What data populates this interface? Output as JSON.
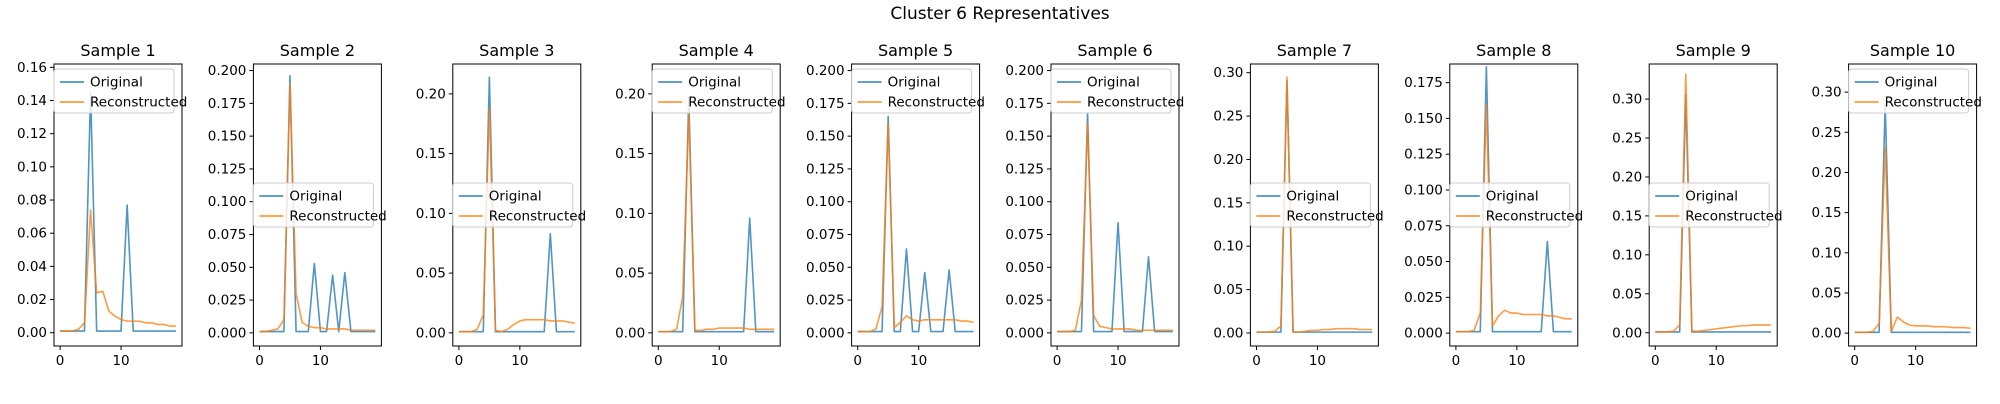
{
  "figure": {
    "suptitle": "Cluster 6 Representatives"
  },
  "colors": {
    "original": "#1f77b4",
    "reconstructed": "#ff7f0e"
  },
  "chart_data": [
    {
      "type": "line",
      "title": "Sample 1",
      "xlim": [
        -1,
        20
      ],
      "ylim": [
        -0.008,
        0.162
      ],
      "xticks": [
        0,
        10
      ],
      "yticks": [
        0,
        0.02,
        0.04,
        0.06,
        0.08,
        0.1,
        0.12,
        0.14,
        0.16
      ],
      "ytick_labels": [
        "0.00",
        "0.02",
        "0.04",
        "0.06",
        "0.08",
        "0.10",
        "0.12",
        "0.14",
        "0.16"
      ],
      "legend": "upper",
      "x": [
        0,
        1,
        2,
        3,
        4,
        5,
        6,
        7,
        8,
        9,
        10,
        11,
        12,
        13,
        14,
        15,
        16,
        17,
        18,
        19
      ],
      "series": [
        {
          "name": "Original",
          "values": [
            0.001,
            0.001,
            0.001,
            0.001,
            0.001,
            0.145,
            0.001,
            0.001,
            0.001,
            0.001,
            0.001,
            0.077,
            0.001,
            0.001,
            0.001,
            0.001,
            0.001,
            0.001,
            0.001,
            0.001
          ]
        },
        {
          "name": "Reconstructed",
          "values": [
            0.001,
            0.001,
            0.001,
            0.002,
            0.006,
            0.074,
            0.024,
            0.025,
            0.013,
            0.01,
            0.008,
            0.007,
            0.007,
            0.007,
            0.006,
            0.006,
            0.005,
            0.005,
            0.004,
            0.004
          ]
        }
      ]
    },
    {
      "type": "line",
      "title": "Sample 2",
      "xlim": [
        -1,
        20
      ],
      "ylim": [
        -0.01,
        0.205
      ],
      "xticks": [
        0,
        10
      ],
      "yticks": [
        0,
        0.025,
        0.05,
        0.075,
        0.1,
        0.125,
        0.15,
        0.175,
        0.2
      ],
      "ytick_labels": [
        "0.000",
        "0.025",
        "0.050",
        "0.075",
        "0.100",
        "0.125",
        "0.150",
        "0.175",
        "0.200"
      ],
      "legend": "center",
      "x": [
        0,
        1,
        2,
        3,
        4,
        5,
        6,
        7,
        8,
        9,
        10,
        11,
        12,
        13,
        14,
        15,
        16,
        17,
        18,
        19
      ],
      "series": [
        {
          "name": "Original",
          "values": [
            0.001,
            0.001,
            0.001,
            0.001,
            0.001,
            0.196,
            0.001,
            0.001,
            0.001,
            0.053,
            0.001,
            0.001,
            0.044,
            0.001,
            0.046,
            0.001,
            0.001,
            0.001,
            0.001,
            0.001
          ]
        },
        {
          "name": "Reconstructed",
          "values": [
            0.001,
            0.001,
            0.002,
            0.003,
            0.01,
            0.19,
            0.03,
            0.008,
            0.005,
            0.004,
            0.004,
            0.003,
            0.003,
            0.003,
            0.003,
            0.002,
            0.002,
            0.002,
            0.002,
            0.002
          ]
        }
      ]
    },
    {
      "type": "line",
      "title": "Sample 3",
      "xlim": [
        -1,
        20
      ],
      "ylim": [
        -0.011,
        0.225
      ],
      "xticks": [
        0,
        10
      ],
      "yticks": [
        0,
        0.05,
        0.1,
        0.15,
        0.2
      ],
      "ytick_labels": [
        "0.00",
        "0.05",
        "0.10",
        "0.15",
        "0.20"
      ],
      "legend": "center",
      "x": [
        0,
        1,
        2,
        3,
        4,
        5,
        6,
        7,
        8,
        9,
        10,
        11,
        12,
        13,
        14,
        15,
        16,
        17,
        18,
        19
      ],
      "series": [
        {
          "name": "Original",
          "values": [
            0.001,
            0.001,
            0.001,
            0.001,
            0.001,
            0.214,
            0.001,
            0.001,
            0.001,
            0.001,
            0.001,
            0.001,
            0.001,
            0.001,
            0.001,
            0.083,
            0.001,
            0.001,
            0.001,
            0.001
          ]
        },
        {
          "name": "Reconstructed",
          "values": [
            0.001,
            0.001,
            0.001,
            0.003,
            0.015,
            0.188,
            0.002,
            0.001,
            0.003,
            0.007,
            0.01,
            0.011,
            0.011,
            0.011,
            0.011,
            0.01,
            0.01,
            0.01,
            0.009,
            0.008
          ]
        }
      ]
    },
    {
      "type": "line",
      "title": "Sample 4",
      "xlim": [
        -1,
        20
      ],
      "ylim": [
        -0.011,
        0.225
      ],
      "xticks": [
        0,
        10
      ],
      "yticks": [
        0,
        0.05,
        0.1,
        0.15,
        0.2
      ],
      "ytick_labels": [
        "0.00",
        "0.05",
        "0.10",
        "0.15",
        "0.20"
      ],
      "legend": "upper",
      "x": [
        0,
        1,
        2,
        3,
        4,
        5,
        6,
        7,
        8,
        9,
        10,
        11,
        12,
        13,
        14,
        15,
        16,
        17,
        18,
        19
      ],
      "series": [
        {
          "name": "Original",
          "values": [
            0.001,
            0.001,
            0.001,
            0.001,
            0.001,
            0.197,
            0.001,
            0.001,
            0.001,
            0.001,
            0.001,
            0.001,
            0.001,
            0.001,
            0.001,
            0.096,
            0.001,
            0.001,
            0.001,
            0.001
          ]
        },
        {
          "name": "Reconstructed",
          "values": [
            0.001,
            0.001,
            0.001,
            0.003,
            0.03,
            0.184,
            0.002,
            0.002,
            0.003,
            0.003,
            0.004,
            0.004,
            0.004,
            0.004,
            0.004,
            0.003,
            0.003,
            0.003,
            0.003,
            0.003
          ]
        }
      ]
    },
    {
      "type": "line",
      "title": "Sample 5",
      "xlim": [
        -1,
        20
      ],
      "ylim": [
        -0.01,
        0.205
      ],
      "xticks": [
        0,
        10
      ],
      "yticks": [
        0,
        0.025,
        0.05,
        0.075,
        0.1,
        0.125,
        0.15,
        0.175,
        0.2
      ],
      "ytick_labels": [
        "0.000",
        "0.025",
        "0.050",
        "0.075",
        "0.100",
        "0.125",
        "0.150",
        "0.175",
        "0.200"
      ],
      "legend": "upper",
      "x": [
        0,
        1,
        2,
        3,
        4,
        5,
        6,
        7,
        8,
        9,
        10,
        11,
        12,
        13,
        14,
        15,
        16,
        17,
        18,
        19
      ],
      "series": [
        {
          "name": "Original",
          "values": [
            0.001,
            0.001,
            0.001,
            0.001,
            0.001,
            0.165,
            0.001,
            0.001,
            0.064,
            0.001,
            0.001,
            0.046,
            0.001,
            0.001,
            0.001,
            0.048,
            0.001,
            0.001,
            0.001,
            0.001
          ]
        },
        {
          "name": "Reconstructed",
          "values": [
            0.001,
            0.001,
            0.001,
            0.003,
            0.02,
            0.16,
            0.004,
            0.008,
            0.013,
            0.01,
            0.009,
            0.01,
            0.01,
            0.01,
            0.01,
            0.01,
            0.01,
            0.009,
            0.009,
            0.008
          ]
        }
      ]
    },
    {
      "type": "line",
      "title": "Sample 6",
      "xlim": [
        -1,
        20
      ],
      "ylim": [
        -0.01,
        0.205
      ],
      "xticks": [
        0,
        10
      ],
      "yticks": [
        0,
        0.025,
        0.05,
        0.075,
        0.1,
        0.125,
        0.15,
        0.175,
        0.2
      ],
      "ytick_labels": [
        "0.000",
        "0.025",
        "0.050",
        "0.075",
        "0.100",
        "0.125",
        "0.150",
        "0.175",
        "0.200"
      ],
      "legend": "upper",
      "x": [
        0,
        1,
        2,
        3,
        4,
        5,
        6,
        7,
        8,
        9,
        10,
        11,
        12,
        13,
        14,
        15,
        16,
        17,
        18,
        19
      ],
      "series": [
        {
          "name": "Original",
          "values": [
            0.001,
            0.001,
            0.001,
            0.001,
            0.001,
            0.168,
            0.001,
            0.001,
            0.001,
            0.001,
            0.084,
            0.001,
            0.001,
            0.001,
            0.001,
            0.058,
            0.001,
            0.001,
            0.001,
            0.001
          ]
        },
        {
          "name": "Reconstructed",
          "values": [
            0.001,
            0.001,
            0.001,
            0.002,
            0.025,
            0.16,
            0.013,
            0.005,
            0.004,
            0.003,
            0.003,
            0.003,
            0.003,
            0.002,
            0.002,
            0.002,
            0.002,
            0.002,
            0.002,
            0.002
          ]
        }
      ]
    },
    {
      "type": "line",
      "title": "Sample 7",
      "xlim": [
        -1,
        20
      ],
      "ylim": [
        -0.015,
        0.31
      ],
      "xticks": [
        0,
        10
      ],
      "yticks": [
        0,
        0.05,
        0.1,
        0.15,
        0.2,
        0.25,
        0.3
      ],
      "ytick_labels": [
        "0.00",
        "0.05",
        "0.10",
        "0.15",
        "0.20",
        "0.25",
        "0.30"
      ],
      "legend": "center",
      "x": [
        0,
        1,
        2,
        3,
        4,
        5,
        6,
        7,
        8,
        9,
        10,
        11,
        12,
        13,
        14,
        15,
        16,
        17,
        18,
        19
      ],
      "series": [
        {
          "name": "Original",
          "values": [
            0.001,
            0.001,
            0.001,
            0.001,
            0.001,
            0.291,
            0.001,
            0.001,
            0.001,
            0.001,
            0.001,
            0.001,
            0.001,
            0.001,
            0.001,
            0.001,
            0.001,
            0.001,
            0.001,
            0.001
          ]
        },
        {
          "name": "Reconstructed",
          "values": [
            0.001,
            0.001,
            0.001,
            0.002,
            0.008,
            0.295,
            0.001,
            0.001,
            0.002,
            0.003,
            0.003,
            0.004,
            0.004,
            0.005,
            0.005,
            0.005,
            0.005,
            0.004,
            0.004,
            0.004
          ]
        }
      ]
    },
    {
      "type": "line",
      "title": "Sample 8",
      "xlim": [
        -1,
        20
      ],
      "ylim": [
        -0.009,
        0.188
      ],
      "xticks": [
        0,
        10
      ],
      "yticks": [
        0,
        0.025,
        0.05,
        0.075,
        0.1,
        0.125,
        0.15,
        0.175
      ],
      "ytick_labels": [
        "0.000",
        "0.025",
        "0.050",
        "0.075",
        "0.100",
        "0.125",
        "0.150",
        "0.175"
      ],
      "legend": "center",
      "x": [
        0,
        1,
        2,
        3,
        4,
        5,
        6,
        7,
        8,
        9,
        10,
        11,
        12,
        13,
        14,
        15,
        16,
        17,
        18,
        19
      ],
      "series": [
        {
          "name": "Original",
          "values": [
            0.001,
            0.001,
            0.001,
            0.001,
            0.001,
            0.186,
            0.001,
            0.001,
            0.001,
            0.001,
            0.001,
            0.001,
            0.001,
            0.001,
            0.001,
            0.064,
            0.001,
            0.001,
            0.001,
            0.001
          ]
        },
        {
          "name": "Reconstructed",
          "values": [
            0.001,
            0.001,
            0.001,
            0.002,
            0.014,
            0.16,
            0.005,
            0.012,
            0.016,
            0.014,
            0.014,
            0.013,
            0.013,
            0.013,
            0.013,
            0.012,
            0.012,
            0.011,
            0.01,
            0.01
          ]
        }
      ]
    },
    {
      "type": "line",
      "title": "Sample 9",
      "xlim": [
        -1,
        20
      ],
      "ylim": [
        -0.017,
        0.345
      ],
      "xticks": [
        0,
        10
      ],
      "yticks": [
        0,
        0.05,
        0.1,
        0.15,
        0.2,
        0.25,
        0.3
      ],
      "ytick_labels": [
        "0.00",
        "0.05",
        "0.10",
        "0.15",
        "0.20",
        "0.25",
        "0.30"
      ],
      "legend": "center",
      "x": [
        0,
        1,
        2,
        3,
        4,
        5,
        6,
        7,
        8,
        9,
        10,
        11,
        12,
        13,
        14,
        15,
        16,
        17,
        18,
        19
      ],
      "series": [
        {
          "name": "Original",
          "values": [
            0.001,
            0.001,
            0.001,
            0.001,
            0.001,
            0.305,
            0.001,
            0.001,
            0.001,
            0.001,
            0.001,
            0.001,
            0.001,
            0.001,
            0.001,
            0.001,
            0.001,
            0.001,
            0.001,
            0.001
          ]
        },
        {
          "name": "Reconstructed",
          "values": [
            0.001,
            0.001,
            0.001,
            0.002,
            0.01,
            0.332,
            0.002,
            0.002,
            0.003,
            0.004,
            0.005,
            0.006,
            0.007,
            0.008,
            0.009,
            0.009,
            0.01,
            0.01,
            0.01,
            0.01
          ]
        }
      ]
    },
    {
      "type": "line",
      "title": "Sample 10",
      "xlim": [
        -1,
        20
      ],
      "ylim": [
        -0.016,
        0.335
      ],
      "xticks": [
        0,
        10
      ],
      "yticks": [
        0,
        0.05,
        0.1,
        0.15,
        0.2,
        0.25,
        0.3
      ],
      "ytick_labels": [
        "0.00",
        "0.05",
        "0.10",
        "0.15",
        "0.20",
        "0.25",
        "0.30"
      ],
      "legend": "upper",
      "x": [
        0,
        1,
        2,
        3,
        4,
        5,
        6,
        7,
        8,
        9,
        10,
        11,
        12,
        13,
        14,
        15,
        16,
        17,
        18,
        19
      ],
      "series": [
        {
          "name": "Original",
          "values": [
            0.001,
            0.001,
            0.001,
            0.001,
            0.001,
            0.285,
            0.001,
            0.001,
            0.001,
            0.001,
            0.001,
            0.001,
            0.001,
            0.001,
            0.001,
            0.001,
            0.001,
            0.001,
            0.001,
            0.001
          ]
        },
        {
          "name": "Reconstructed",
          "values": [
            0.001,
            0.001,
            0.001,
            0.002,
            0.012,
            0.231,
            0.002,
            0.02,
            0.014,
            0.01,
            0.009,
            0.009,
            0.009,
            0.008,
            0.008,
            0.008,
            0.007,
            0.007,
            0.007,
            0.006
          ]
        }
      ]
    }
  ]
}
